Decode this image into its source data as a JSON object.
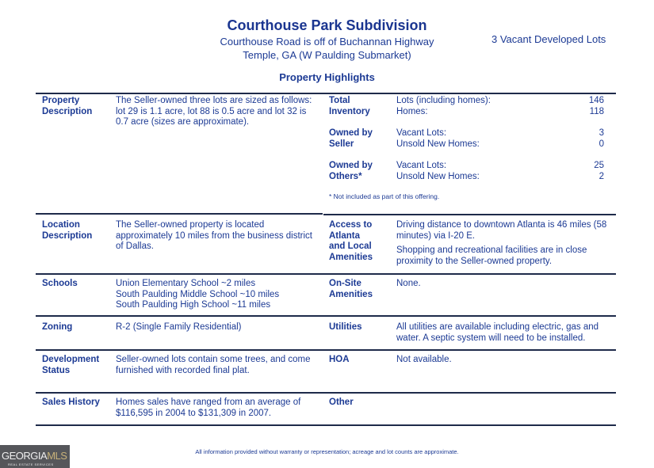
{
  "header": {
    "title": "Courthouse Park Subdivision",
    "subtitle1": "Courthouse Road is off of Buchannan Highway",
    "subtitle2": "Temple, GA (W Paulding Submarket)",
    "lots_note": "3 Vacant Developed Lots",
    "section": "Property Highlights"
  },
  "rows": {
    "property": {
      "label": [
        "Property",
        "Description"
      ],
      "text": [
        "The Seller-owned three lots are sized as follows:",
        "lot 29 is 1.1 acre, lot 88 is 0.5 acre and lot 32 is",
        "0.7 acre (sizes are approximate)."
      ]
    },
    "inventory": {
      "total": {
        "label": [
          "Total",
          "Inventory"
        ],
        "items": [
          {
            "k": "Lots (including homes):",
            "v": "146"
          },
          {
            "k": "Homes:",
            "v": "118"
          }
        ]
      },
      "seller": {
        "label": [
          "Owned by",
          "Seller"
        ],
        "items": [
          {
            "k": "Vacant Lots:",
            "v": "3"
          },
          {
            "k": "Unsold New Homes:",
            "v": "0"
          }
        ]
      },
      "others": {
        "label": [
          "Owned by",
          "Others*"
        ],
        "items": [
          {
            "k": "Vacant Lots:",
            "v": "25"
          },
          {
            "k": "Unsold New Homes:",
            "v": "2"
          }
        ]
      },
      "note": "* Not included as part of this offering."
    },
    "location": {
      "label": [
        "Location",
        "Description"
      ],
      "text": [
        "The Seller-owned property is located",
        "approximately 10 miles from the business district",
        "of Dallas."
      ]
    },
    "access": {
      "label": [
        "Access to",
        "Atlanta",
        "and Local",
        "Amenities"
      ],
      "text1": [
        "Driving distance to downtown Atlanta is 46 miles (58",
        "minutes) via I-20 E."
      ],
      "text2": [
        "Shopping and recreational facilities are in close",
        "proximity to the Seller-owned property."
      ]
    },
    "schools": {
      "label": "Schools",
      "text": [
        "Union Elementary School ~2 miles",
        "South Paulding Middle School ~10 miles",
        "South Paulding High School ~11 miles"
      ]
    },
    "onsite": {
      "label": [
        "On-Site",
        "Amenities"
      ],
      "text": "None."
    },
    "zoning": {
      "label": "Zoning",
      "text": "R-2 (Single Family Residential)"
    },
    "utilities": {
      "label": "Utilities",
      "text": [
        "All utilities are available including electric, gas and",
        "water.  A septic system will need to be installed."
      ]
    },
    "development": {
      "label": [
        "Development",
        "Status"
      ],
      "text": [
        "Seller-owned lots contain some trees, and come",
        "furnished with recorded final plat."
      ]
    },
    "hoa": {
      "label": "HOA",
      "text": "Not available."
    },
    "sales": {
      "label": "Sales History",
      "text": [
        "Homes sales have ranged from an average of",
        "$116,595 in 2004 to $131,309 in 2007."
      ]
    },
    "other": {
      "label": "Other"
    }
  },
  "footer": "All information provided without warranty or representation; acreage and lot counts are approximate.",
  "logo": {
    "text1": "GEORGIA",
    "text2": "MLS",
    "tagline": "REAL ESTATE SERVICES"
  }
}
